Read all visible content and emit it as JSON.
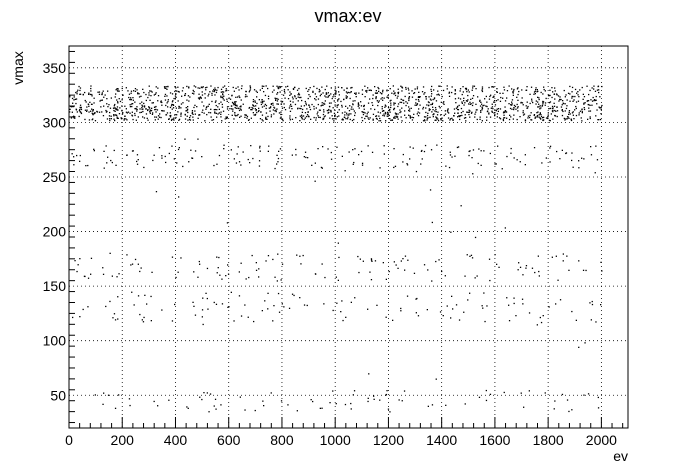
{
  "chart_data": {
    "type": "scatter",
    "title": "vmax:ev",
    "xlabel": "ev",
    "ylabel": "vmax",
    "xlim": [
      0,
      2100
    ],
    "ylim": [
      20,
      370
    ],
    "x_ticks": [
      0,
      200,
      400,
      600,
      800,
      1000,
      1200,
      1400,
      1600,
      1800,
      2000
    ],
    "y_ticks": [
      50,
      100,
      150,
      200,
      250,
      300,
      350
    ],
    "x_tick_labels": [
      "0",
      "200",
      "400",
      "600",
      "800",
      "1000",
      "1200",
      "1400",
      "1600",
      "1800",
      "2000"
    ],
    "y_tick_labels": [
      "50",
      "100",
      "150",
      "200",
      "250",
      "300",
      "350"
    ],
    "grid": true,
    "marker_color": "#000000",
    "series": [
      {
        "clusters": [
          {
            "y_range": [
              316,
              334
            ],
            "count_per_ev": 0.45,
            "x_range": [
              0,
              2000
            ]
          },
          {
            "y_range": [
              302,
              316
            ],
            "count_per_ev": 0.45,
            "x_range": [
              0,
              2000
            ]
          },
          {
            "y_range": [
              258,
              280
            ],
            "count_per_ev": 0.09,
            "x_range": [
              0,
              2000
            ]
          },
          {
            "y_range": [
              155,
              180
            ],
            "count_per_ev": 0.06,
            "x_range": [
              0,
              2000
            ]
          },
          {
            "y_range": [
              115,
              145
            ],
            "count_per_ev": 0.06,
            "x_range": [
              0,
              2000
            ]
          },
          {
            "y_range": [
              35,
              55
            ],
            "count_per_ev": 0.04,
            "x_range": [
              0,
              2000
            ]
          },
          {
            "y_range": [
              55,
              300
            ],
            "count_per_ev": 0.02,
            "x_range": [
              0,
              2000
            ]
          }
        ],
        "seed": 12345
      }
    ]
  }
}
